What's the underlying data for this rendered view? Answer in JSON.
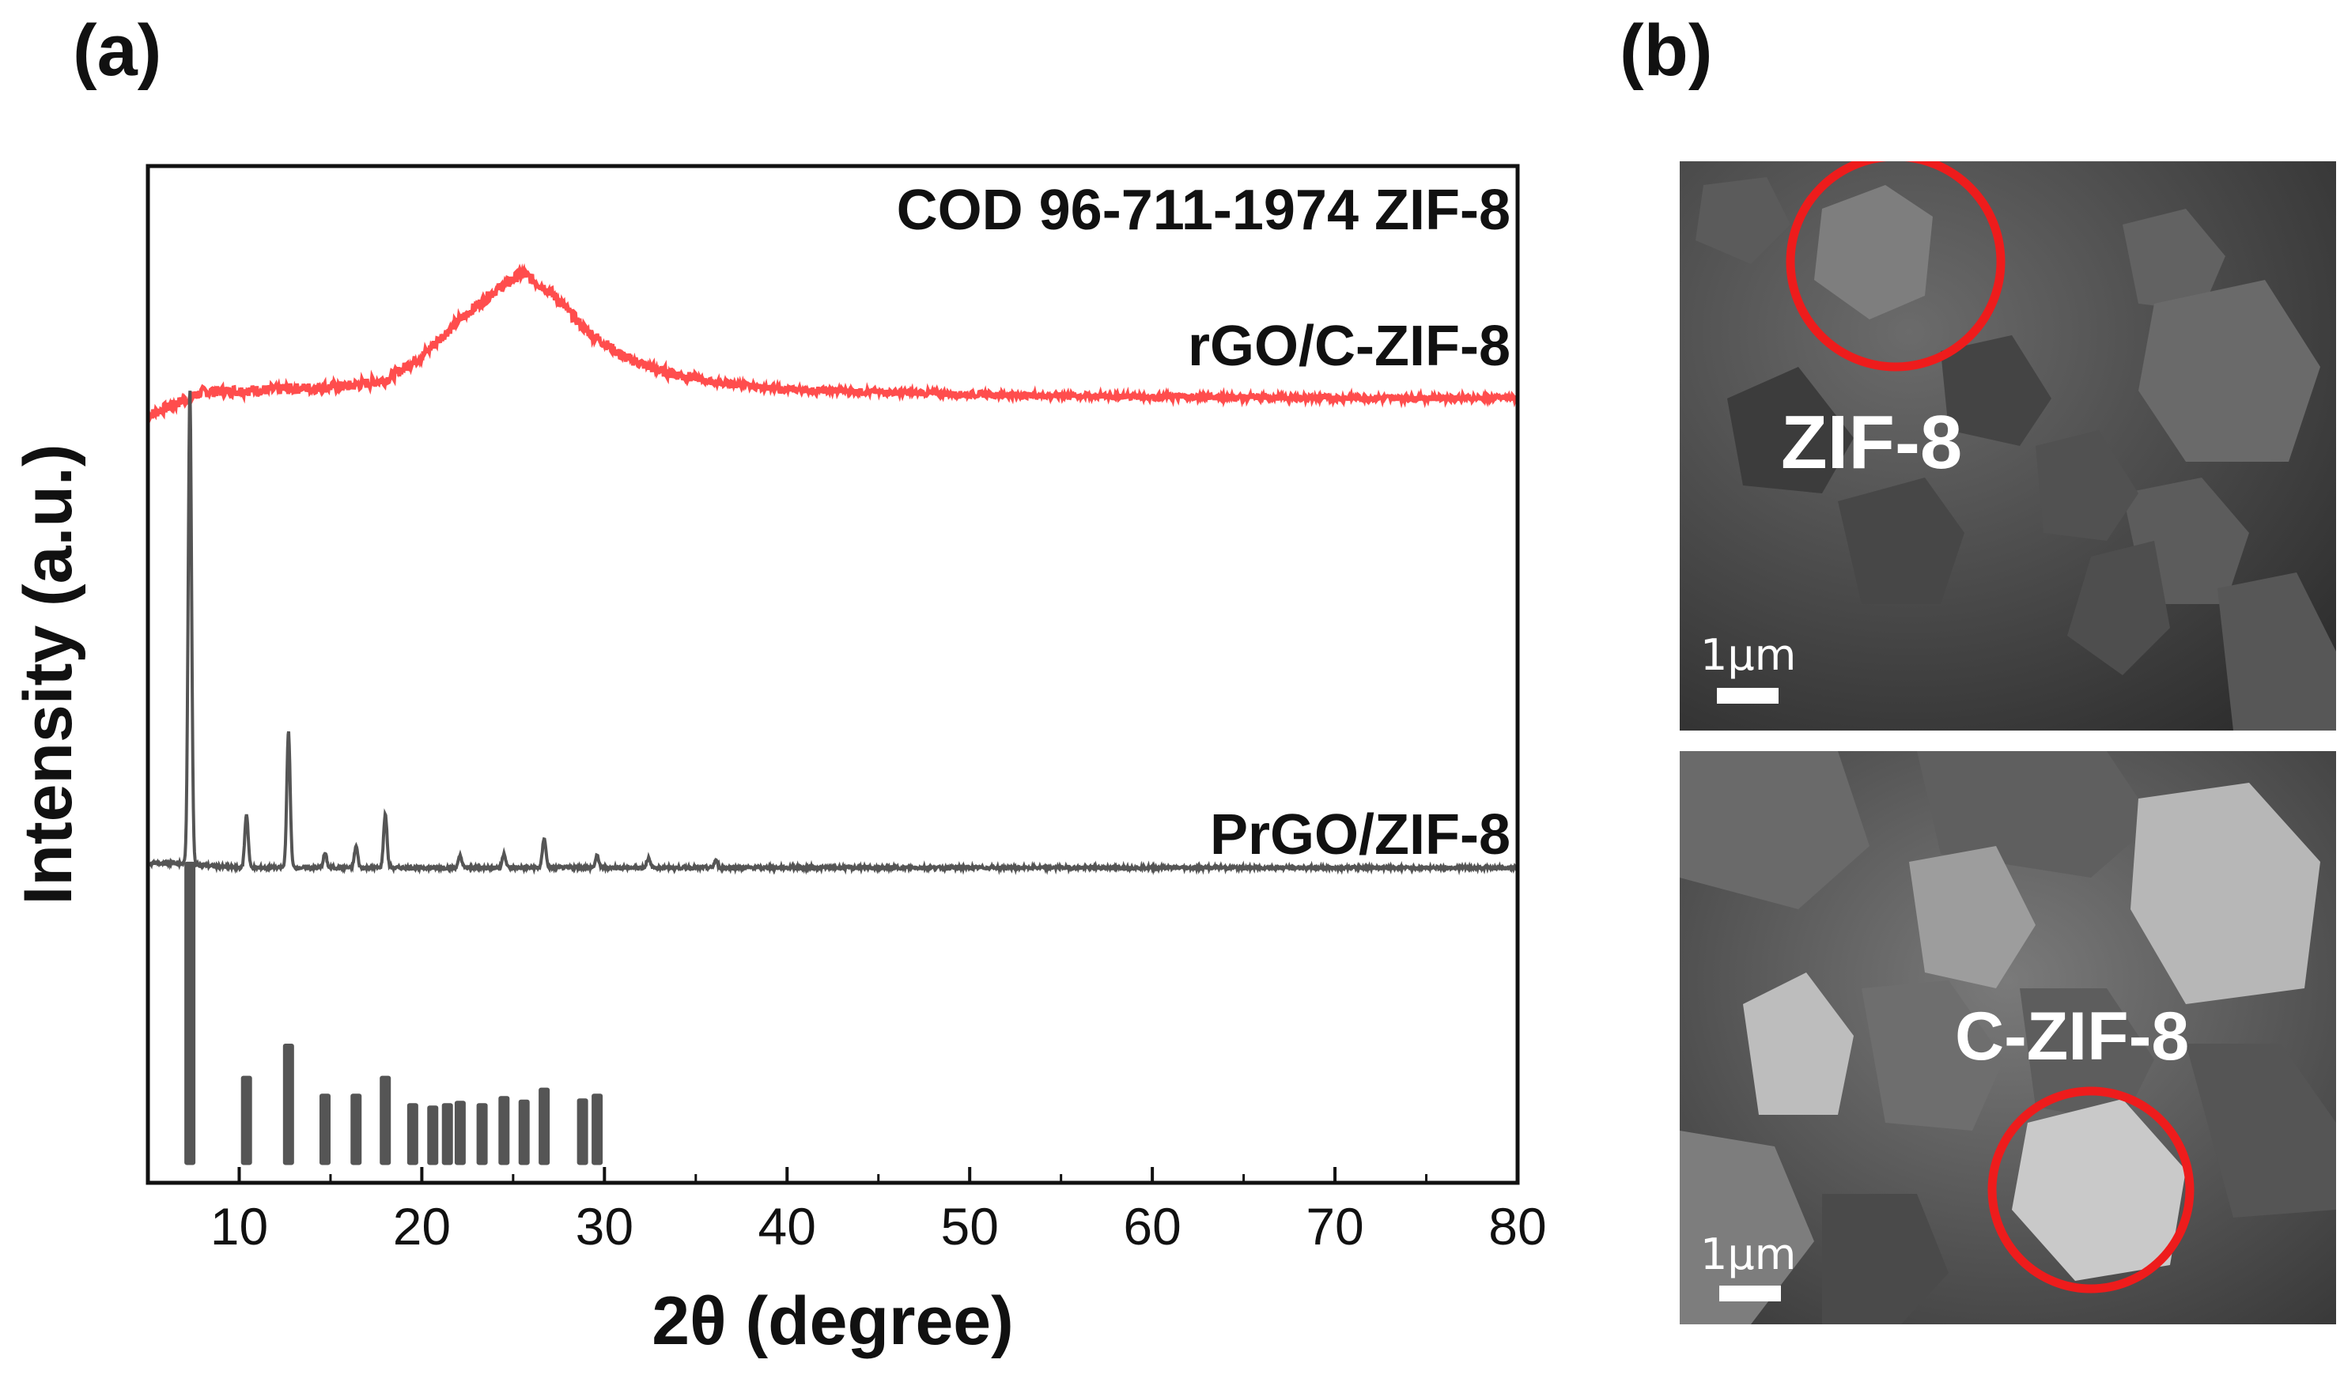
{
  "panels": {
    "a_label": "(a)",
    "b_label": "(b)"
  },
  "chart_data": {
    "type": "line",
    "xlabel": "2θ (degree)",
    "ylabel": "Intensity (a.u.)",
    "xlim": [
      5,
      80
    ],
    "xticks": [
      10,
      20,
      30,
      40,
      50,
      60,
      70,
      80
    ],
    "yticks": [],
    "series": [
      {
        "name": "rGO/C-ZIF-8",
        "color": "#ff4d4d",
        "baseline_offset": 6.3,
        "points": [
          [
            5,
            0.0
          ],
          [
            8,
            0.2
          ],
          [
            12,
            0.22
          ],
          [
            16,
            0.25
          ],
          [
            18,
            0.3
          ],
          [
            20,
            0.5
          ],
          [
            22,
            0.8
          ],
          [
            24,
            1.05
          ],
          [
            25.5,
            1.2
          ],
          [
            27,
            1.05
          ],
          [
            29,
            0.72
          ],
          [
            31,
            0.5
          ],
          [
            33,
            0.38
          ],
          [
            36,
            0.28
          ],
          [
            40,
            0.22
          ],
          [
            50,
            0.18
          ],
          [
            60,
            0.16
          ],
          [
            70,
            0.15
          ],
          [
            80,
            0.15
          ]
        ]
      },
      {
        "name": "PrGO/ZIF-8",
        "color": "#555555",
        "baseline_offset": 2.5,
        "peaks": [
          [
            7.3,
            4.0
          ],
          [
            10.4,
            0.45
          ],
          [
            12.7,
            1.15
          ],
          [
            14.7,
            0.12
          ],
          [
            16.4,
            0.18
          ],
          [
            18.0,
            0.45
          ],
          [
            22.1,
            0.1
          ],
          [
            24.5,
            0.12
          ],
          [
            26.7,
            0.25
          ],
          [
            29.6,
            0.1
          ],
          [
            32.4,
            0.08
          ],
          [
            36.1,
            0.06
          ]
        ]
      },
      {
        "name": "COD 96-711-1974 ZIF-8",
        "color": "#555555",
        "type": "stick",
        "baseline_offset": 0.0,
        "sticks": [
          [
            7.3,
            2.55
          ],
          [
            10.4,
            0.75
          ],
          [
            12.7,
            1.02
          ],
          [
            14.7,
            0.6
          ],
          [
            16.4,
            0.6
          ],
          [
            18.0,
            0.75
          ],
          [
            19.5,
            0.52
          ],
          [
            20.6,
            0.5
          ],
          [
            21.4,
            0.52
          ],
          [
            22.1,
            0.54
          ],
          [
            23.3,
            0.52
          ],
          [
            24.5,
            0.58
          ],
          [
            25.6,
            0.55
          ],
          [
            26.7,
            0.65
          ],
          [
            28.8,
            0.56
          ],
          [
            29.6,
            0.6
          ]
        ]
      }
    ],
    "legend_labels": [
      "COD 96-711-1974 ZIF-8",
      "rGO/C-ZIF-8",
      "PrGO/ZIF-8"
    ]
  },
  "sem": {
    "top_label": "ZIF-8",
    "bottom_label": "C-ZIF-8",
    "scale_text": "1μm",
    "circle_color": "#ee1c1c"
  }
}
